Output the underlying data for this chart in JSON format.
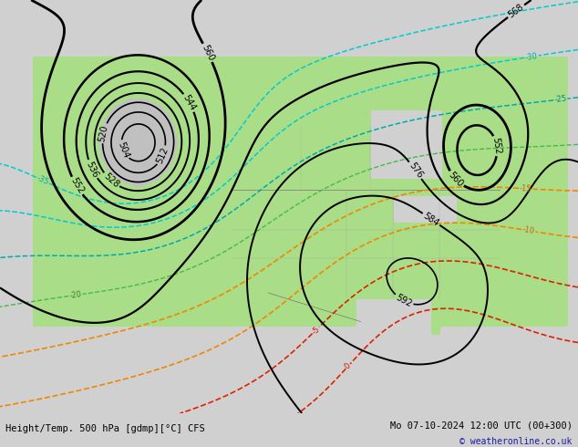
{
  "title_left": "Height/Temp. 500 hPa [gdmp][°C] CFS",
  "title_right": "Mo 07-10-2024 12:00 UTC (00+300)",
  "copyright": "© weatheronline.co.uk",
  "fig_width": 6.34,
  "fig_height": 4.9,
  "dpi": 100,
  "bg_color": "#d0d0d0",
  "land_base_color": "#c0c0c0",
  "green_color": "#aadd88",
  "bottom_bar_color": "#e0e0e0",
  "title_color": "black",
  "copyright_color": "#1a1aaa"
}
